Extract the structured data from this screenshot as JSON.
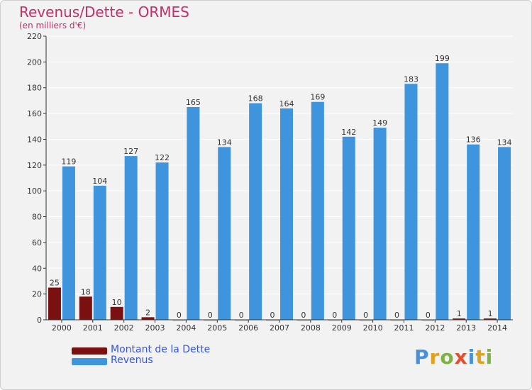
{
  "title": "Revenus/Dette - ORMES",
  "subtitle": "(en milliers d'€)",
  "logo": {
    "text": "Proxiti",
    "letter_colors": [
      "#4a90d9",
      "#e0a020",
      "#7cb342",
      "#e05030",
      "#4a90d9",
      "#e0a020",
      "#7cb342"
    ]
  },
  "colors": {
    "dette": "#7a1010",
    "revenus": "#3e95de",
    "axis": "#333333",
    "grid": "#ffffff",
    "plot_bg": "#f2f2f2"
  },
  "chart_data": {
    "type": "bar",
    "categories": [
      "2000",
      "2001",
      "2002",
      "2003",
      "2004",
      "2005",
      "2006",
      "2007",
      "2008",
      "2009",
      "2010",
      "2011",
      "2012",
      "2013",
      "2014"
    ],
    "series": [
      {
        "name": "Montant de la Dette",
        "values": [
          25,
          18,
          10,
          2,
          0,
          0,
          0,
          0,
          0,
          0,
          0,
          0,
          0,
          1,
          1
        ]
      },
      {
        "name": "Revenus",
        "values": [
          119,
          104,
          127,
          122,
          165,
          134,
          168,
          164,
          169,
          142,
          149,
          183,
          199,
          136,
          134
        ]
      }
    ],
    "yticks": [
      0,
      20,
      40,
      60,
      80,
      100,
      120,
      140,
      160,
      180,
      200,
      220
    ],
    "ylim": [
      0,
      220
    ],
    "grid": true,
    "legend_position": "bottom-left"
  }
}
